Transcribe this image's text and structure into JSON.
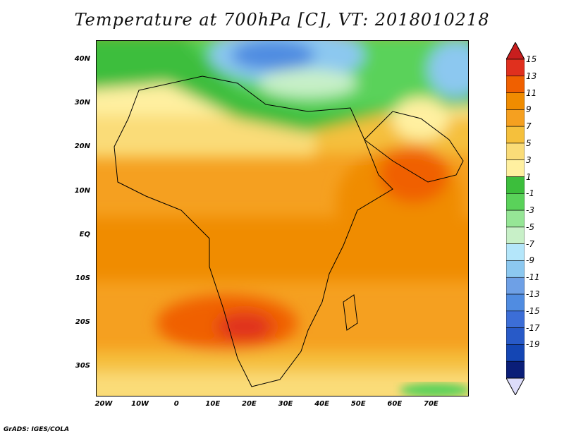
{
  "title": "Temperature at 700hPa [C], VT: 2018010218",
  "footer": "GrADS: IGES/COLA",
  "axes": {
    "lat_labels": [
      "40N",
      "30N",
      "20N",
      "10N",
      "EQ",
      "10S",
      "20S",
      "30S"
    ],
    "lon_labels": [
      "20W",
      "10W",
      "0",
      "10E",
      "20E",
      "30E",
      "40E",
      "50E",
      "60E",
      "70E"
    ]
  },
  "colorbar": {
    "labels": [
      "15",
      "13",
      "11",
      "9",
      "7",
      "5",
      "3",
      "1",
      "-1",
      "-3",
      "-5",
      "-7",
      "-9",
      "-11",
      "-13",
      "-15",
      "-17",
      "-19"
    ],
    "colors": [
      "#e0301e",
      "#f06000",
      "#f08c00",
      "#f5a020",
      "#f5c03c",
      "#fadc78",
      "#fff0a0",
      "#3cbe3c",
      "#5ad25a",
      "#96e696",
      "#c8f0c8",
      "#b4e6fa",
      "#8cc8f0",
      "#6ea0e6",
      "#508ce1",
      "#3c6ed7",
      "#285ac8",
      "#1446b4",
      "#0a1e78"
    ],
    "top_arrow_color": "#c81e1e",
    "bottom_arrow_color": "#dcdcfa"
  }
}
